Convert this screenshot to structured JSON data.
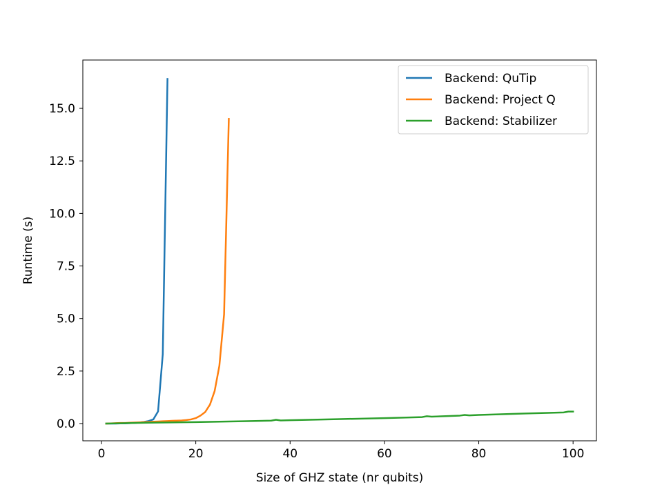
{
  "chart_data": {
    "type": "line",
    "xlabel": "Size of GHZ state (nr qubits)",
    "ylabel": "Runtime (s)",
    "xlim": [
      -3.95,
      104.95
    ],
    "ylim": [
      -0.82,
      17.3
    ],
    "xticks": [
      0,
      20,
      40,
      60,
      80,
      100
    ],
    "xtick_labels": [
      "0",
      "20",
      "40",
      "60",
      "80",
      "100"
    ],
    "yticks": [
      0.0,
      2.5,
      5.0,
      7.5,
      10.0,
      12.5,
      15.0
    ],
    "ytick_labels": [
      "0.0",
      "2.5",
      "5.0",
      "7.5",
      "10.0",
      "12.5",
      "15.0"
    ],
    "grid": false,
    "legend_position": "top-right",
    "series": [
      {
        "name": "Backend: QuTip",
        "color": "#1f77b4",
        "x": [
          1,
          2,
          3,
          4,
          5,
          6,
          7,
          8,
          9,
          10,
          11,
          12,
          13,
          14
        ],
        "y": [
          0.0,
          0.0,
          0.0,
          0.01,
          0.01,
          0.02,
          0.03,
          0.05,
          0.08,
          0.12,
          0.2,
          0.58,
          3.3,
          16.4
        ]
      },
      {
        "name": "Backend: Project Q",
        "color": "#ff7f0e",
        "x": [
          1,
          2,
          3,
          4,
          5,
          6,
          7,
          8,
          9,
          10,
          11,
          12,
          13,
          14,
          15,
          16,
          17,
          18,
          19,
          20,
          21,
          22,
          23,
          24,
          25,
          26,
          27
        ],
        "y": [
          0.0,
          0.01,
          0.02,
          0.03,
          0.03,
          0.04,
          0.05,
          0.06,
          0.07,
          0.08,
          0.09,
          0.1,
          0.11,
          0.12,
          0.13,
          0.14,
          0.15,
          0.17,
          0.2,
          0.26,
          0.38,
          0.55,
          0.9,
          1.55,
          2.75,
          5.2,
          14.5
        ]
      },
      {
        "name": "Backend: Stabilizer",
        "color": "#2ca02c",
        "x": [
          1,
          10,
          20,
          30,
          36,
          37,
          38,
          40,
          50,
          60,
          68,
          69,
          70,
          75,
          76,
          77,
          78,
          80,
          90,
          98,
          99,
          100
        ],
        "y": [
          0.0,
          0.04,
          0.07,
          0.11,
          0.14,
          0.18,
          0.15,
          0.16,
          0.21,
          0.26,
          0.31,
          0.35,
          0.33,
          0.37,
          0.38,
          0.41,
          0.39,
          0.41,
          0.48,
          0.53,
          0.57,
          0.57
        ]
      }
    ]
  }
}
